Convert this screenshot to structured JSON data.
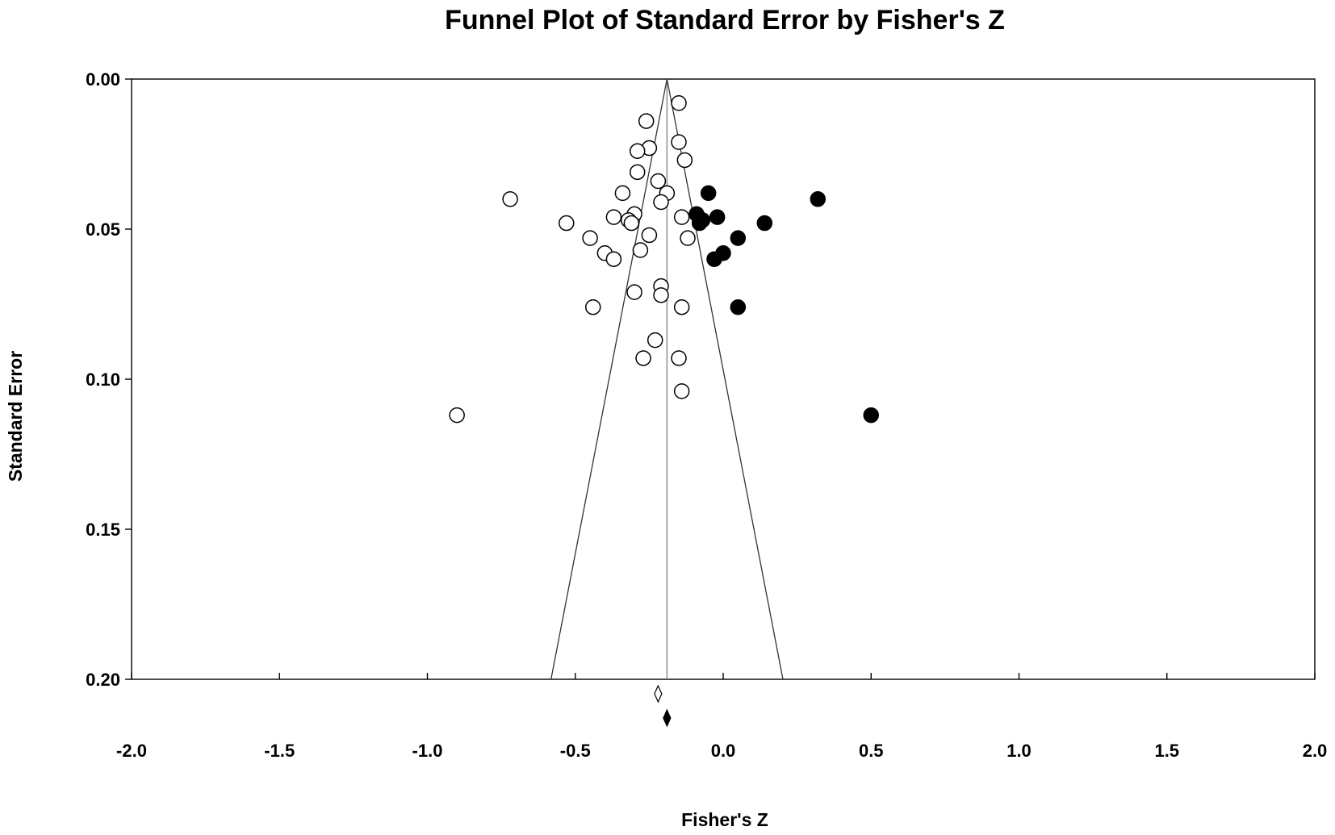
{
  "chart_data": {
    "type": "scatter",
    "title": "Funnel Plot of Standard Error by Fisher's Z",
    "xlabel": "Fisher's Z",
    "ylabel": "Standard Error",
    "xlim": [
      -2.0,
      2.0
    ],
    "ylim": [
      0.0,
      0.2
    ],
    "y_inverted": true,
    "x_ticks": [
      "-2.0",
      "-1.5",
      "-1.0",
      "-0.5",
      "0.0",
      "0.5",
      "1.0",
      "1.5",
      "2.0"
    ],
    "y_ticks": [
      "0.00",
      "0.05",
      "0.10",
      "0.15",
      "0.20"
    ],
    "grid": false,
    "legend": "none",
    "pooled_estimate": -0.19,
    "adjusted_estimate": -0.22,
    "funnel_limits_at_se_0_20": [
      -0.582,
      0.202
    ],
    "series": [
      {
        "marker": "open-circle",
        "color": "#000000",
        "points": [
          {
            "x": -0.15,
            "y": 0.008
          },
          {
            "x": -0.26,
            "y": 0.014
          },
          {
            "x": -0.15,
            "y": 0.021
          },
          {
            "x": -0.25,
            "y": 0.023
          },
          {
            "x": -0.29,
            "y": 0.024
          },
          {
            "x": -0.13,
            "y": 0.027
          },
          {
            "x": -0.29,
            "y": 0.031
          },
          {
            "x": -0.22,
            "y": 0.034
          },
          {
            "x": -0.34,
            "y": 0.038
          },
          {
            "x": -0.19,
            "y": 0.038
          },
          {
            "x": -0.72,
            "y": 0.04
          },
          {
            "x": -0.21,
            "y": 0.041
          },
          {
            "x": -0.3,
            "y": 0.045
          },
          {
            "x": -0.37,
            "y": 0.046
          },
          {
            "x": -0.14,
            "y": 0.046
          },
          {
            "x": -0.32,
            "y": 0.047
          },
          {
            "x": -0.31,
            "y": 0.048
          },
          {
            "x": -0.53,
            "y": 0.048
          },
          {
            "x": -0.25,
            "y": 0.052
          },
          {
            "x": -0.45,
            "y": 0.053
          },
          {
            "x": -0.12,
            "y": 0.053
          },
          {
            "x": -0.28,
            "y": 0.057
          },
          {
            "x": -0.4,
            "y": 0.058
          },
          {
            "x": -0.37,
            "y": 0.06
          },
          {
            "x": -0.21,
            "y": 0.069
          },
          {
            "x": -0.3,
            "y": 0.071
          },
          {
            "x": -0.21,
            "y": 0.072
          },
          {
            "x": -0.44,
            "y": 0.076
          },
          {
            "x": -0.14,
            "y": 0.076
          },
          {
            "x": -0.23,
            "y": 0.087
          },
          {
            "x": -0.15,
            "y": 0.093
          },
          {
            "x": -0.27,
            "y": 0.093
          },
          {
            "x": -0.14,
            "y": 0.104
          },
          {
            "x": -0.9,
            "y": 0.112
          }
        ]
      },
      {
        "marker": "filled-circle",
        "color": "#000000",
        "points": [
          {
            "x": -0.05,
            "y": 0.038
          },
          {
            "x": 0.32,
            "y": 0.04
          },
          {
            "x": -0.09,
            "y": 0.045
          },
          {
            "x": -0.02,
            "y": 0.046
          },
          {
            "x": -0.08,
            "y": 0.048
          },
          {
            "x": -0.07,
            "y": 0.047
          },
          {
            "x": 0.14,
            "y": 0.048
          },
          {
            "x": 0.05,
            "y": 0.053
          },
          {
            "x": 0.0,
            "y": 0.058
          },
          {
            "x": -0.03,
            "y": 0.06
          },
          {
            "x": 0.05,
            "y": 0.076
          },
          {
            "x": 0.5,
            "y": 0.112
          }
        ]
      }
    ]
  }
}
